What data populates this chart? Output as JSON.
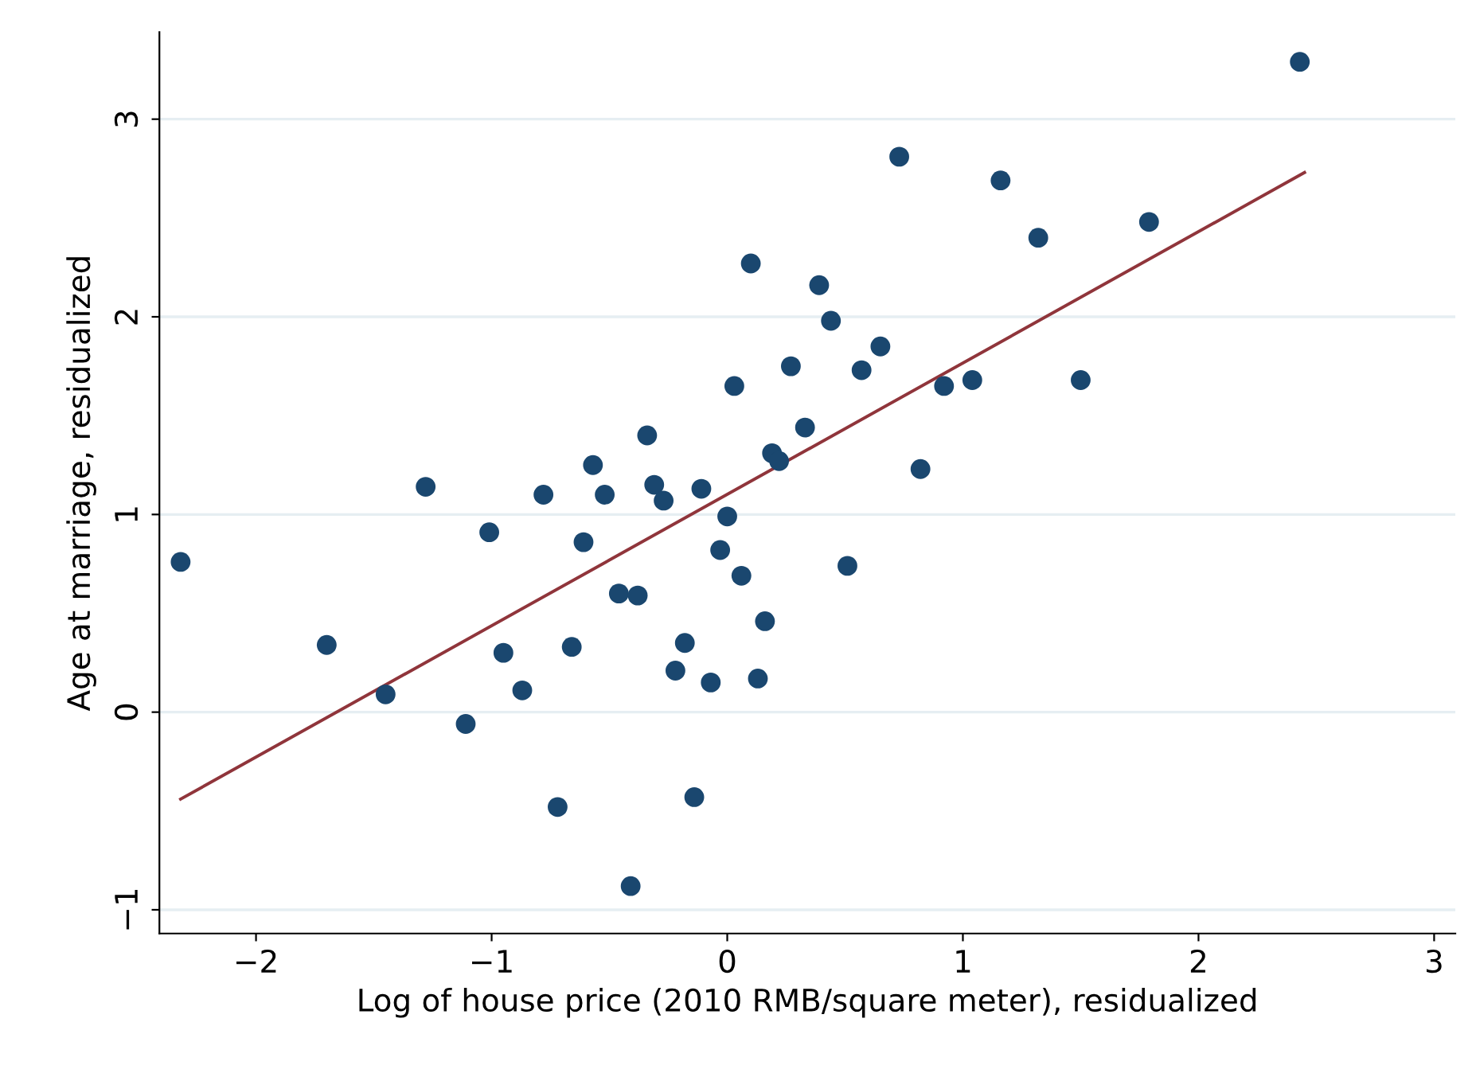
{
  "chart_data": {
    "type": "scatter",
    "xlabel": "Log of house price (2010 RMB/square meter), residualized",
    "ylabel": "Age at marriage, residualized",
    "xlim": [
      -2.41,
      3.09
    ],
    "ylim": [
      -1.12,
      3.44
    ],
    "xticks": [
      {
        "value": -2,
        "label": "−2"
      },
      {
        "value": -1,
        "label": "−1"
      },
      0,
      1,
      2,
      3
    ],
    "yticks": [
      {
        "value": -1,
        "label": "−1"
      },
      0,
      1,
      2,
      3
    ],
    "grid": "y",
    "series": [
      {
        "marker": "circle",
        "color": "#1a476f",
        "x": [
          -2.32,
          -1.7,
          -1.45,
          -1.28,
          -1.11,
          -1.01,
          -0.95,
          -0.87,
          -0.78,
          -0.72,
          -0.66,
          -0.61,
          -0.57,
          -0.52,
          -0.46,
          -0.41,
          -0.38,
          -0.34,
          -0.31,
          -0.27,
          -0.22,
          -0.18,
          -0.14,
          -0.11,
          -0.07,
          -0.03,
          0.0,
          0.03,
          0.06,
          0.1,
          0.13,
          0.16,
          0.19,
          0.22,
          0.27,
          0.33,
          0.39,
          0.44,
          0.51,
          0.57,
          0.65,
          0.73,
          0.82,
          0.92,
          1.04,
          1.16,
          1.32,
          1.5,
          1.79,
          2.43
        ],
        "values": [
          0.76,
          0.34,
          0.09,
          1.14,
          -0.06,
          0.91,
          0.3,
          0.11,
          1.1,
          -0.48,
          0.33,
          0.86,
          1.25,
          1.1,
          0.6,
          -0.88,
          0.59,
          1.4,
          1.15,
          1.07,
          0.21,
          0.35,
          -0.43,
          1.13,
          0.15,
          0.82,
          0.99,
          1.65,
          0.69,
          2.27,
          0.17,
          0.46,
          1.31,
          1.27,
          1.75,
          1.44,
          2.16,
          1.98,
          0.74,
          1.73,
          1.85,
          2.81,
          1.23,
          1.65,
          1.68,
          2.69,
          2.4,
          1.68,
          2.48,
          3.29
        ]
      },
      {
        "type": "line",
        "marker": "none",
        "color": "#90353b",
        "x": [
          -2.32,
          2.45
        ],
        "values": [
          -0.44,
          2.73
        ]
      }
    ]
  }
}
